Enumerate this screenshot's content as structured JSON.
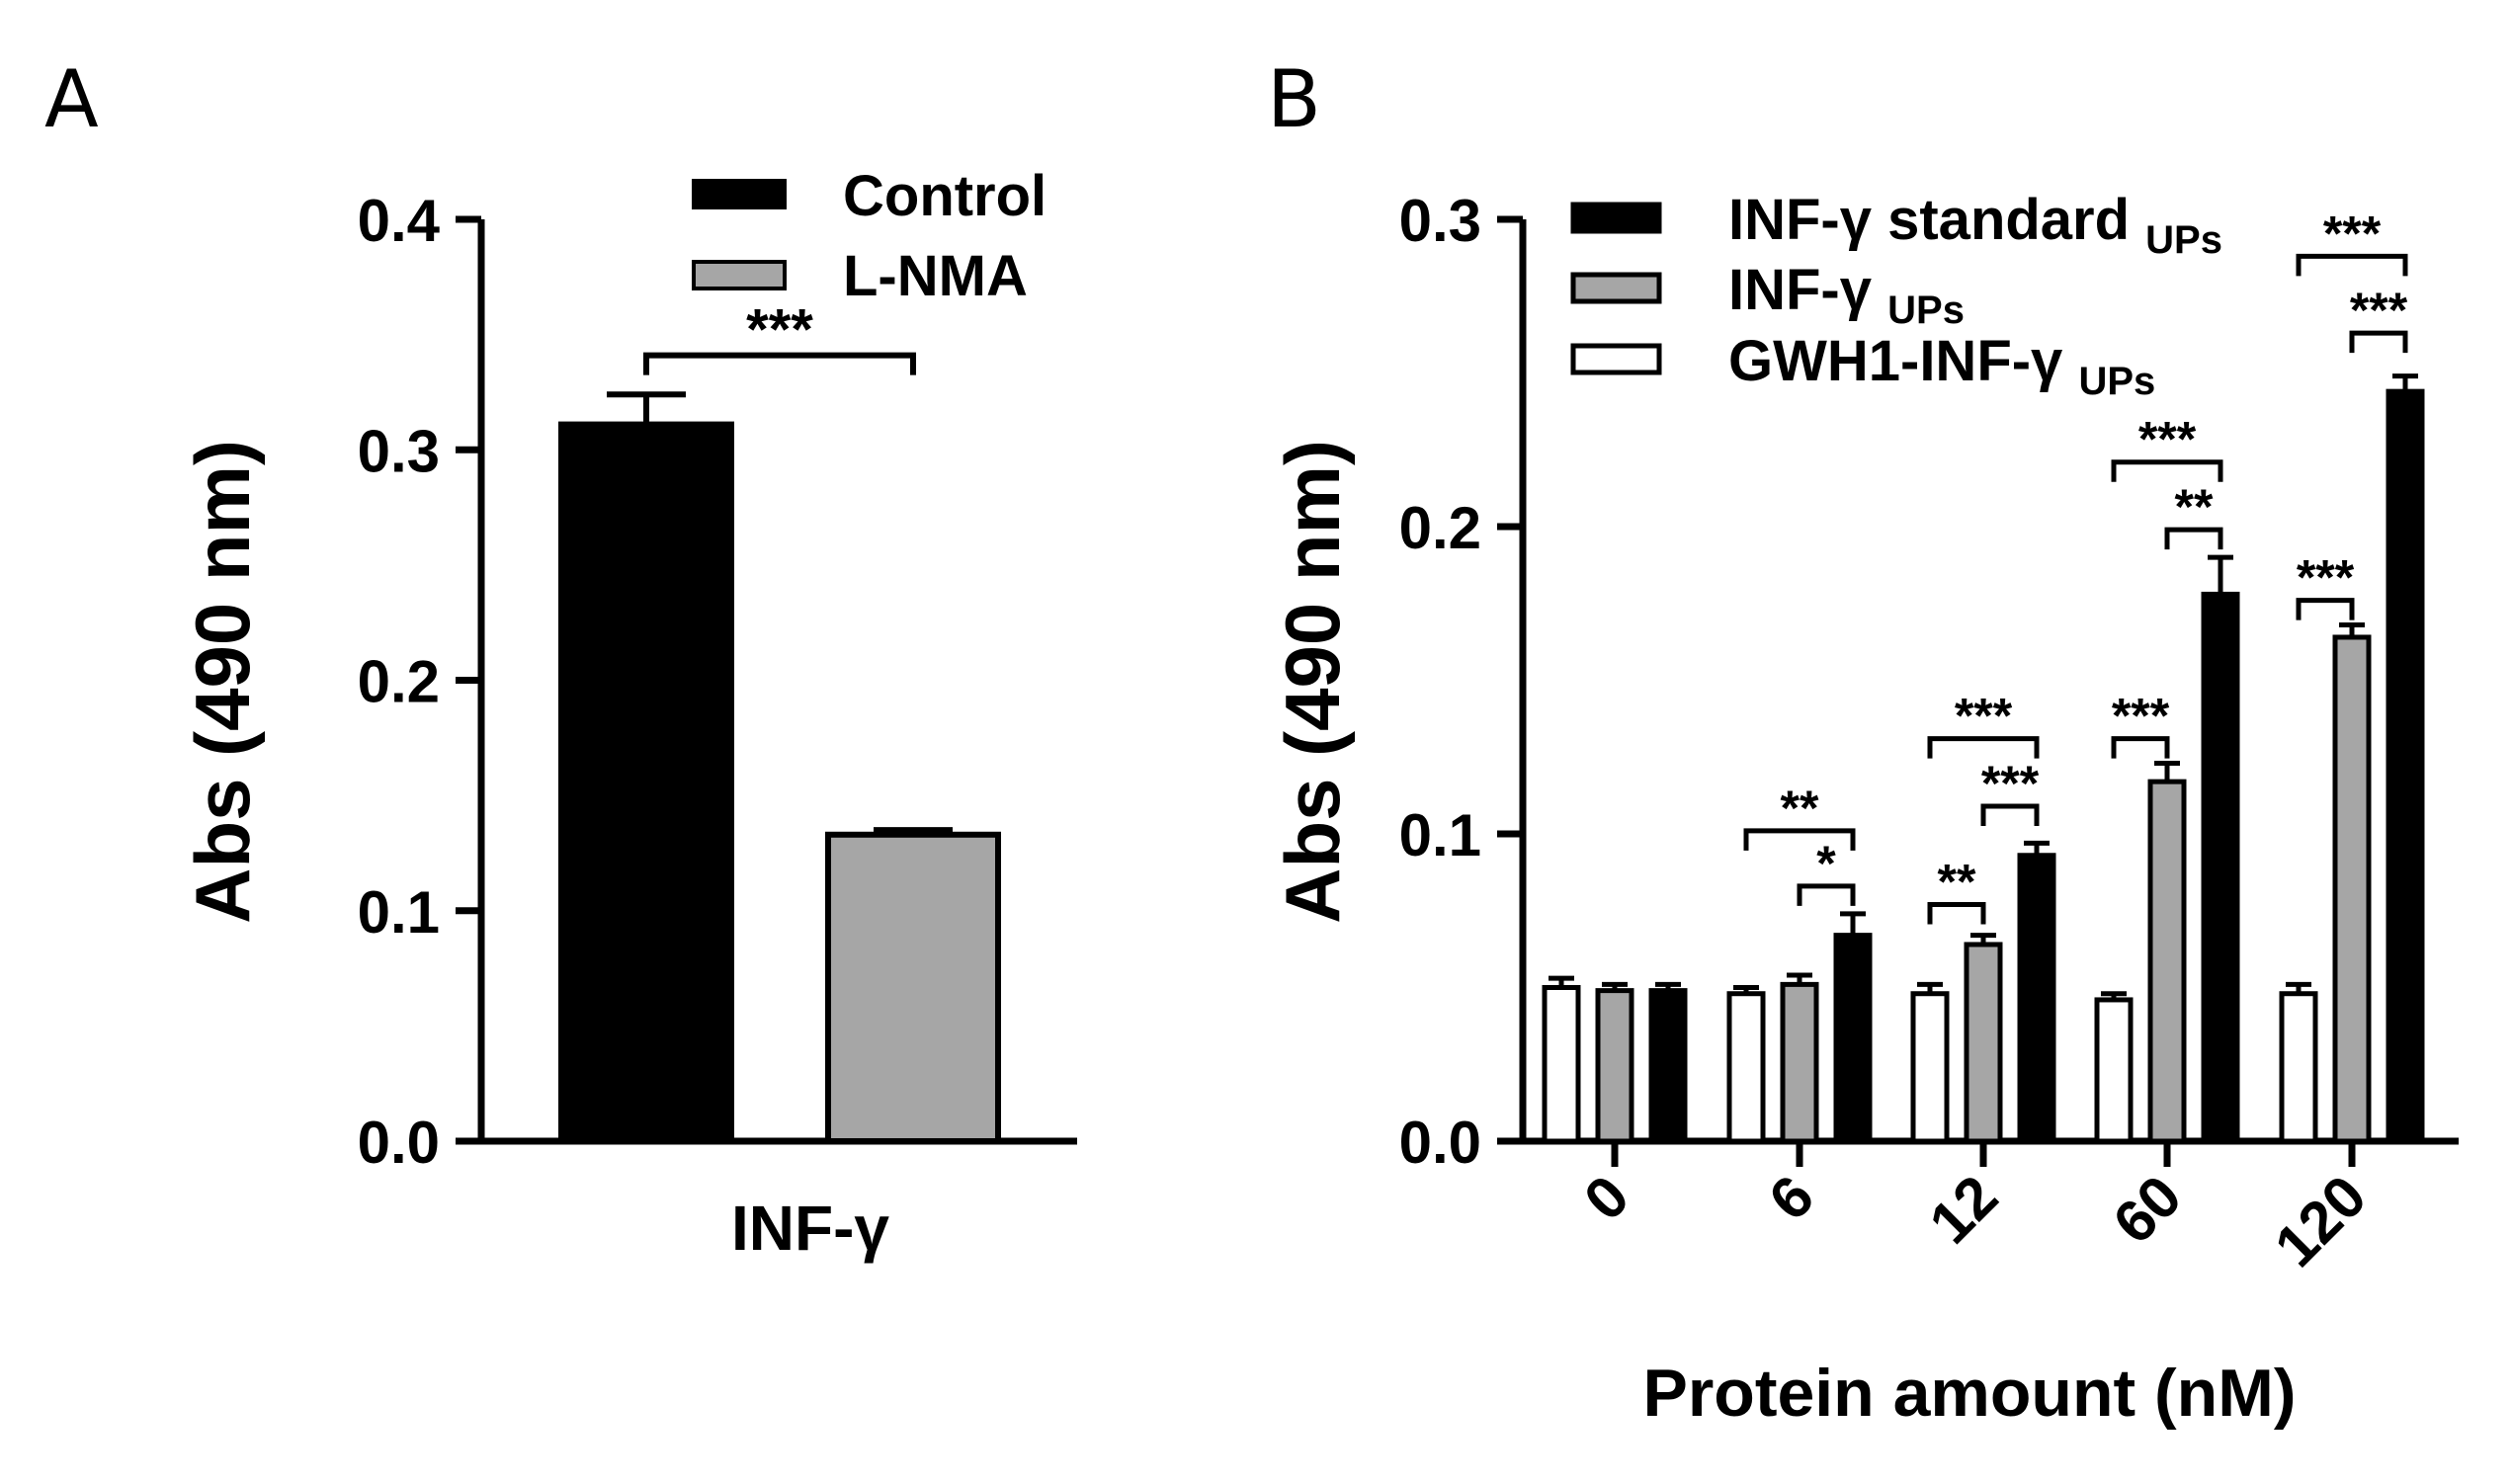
{
  "chart_data": [
    {
      "panel": "A",
      "type": "bar",
      "categories": [
        "INF-γ"
      ],
      "xlabel": "INF-γ",
      "ylabel": "Abs (490 nm)",
      "ylim": [
        0,
        0.4
      ],
      "yticks": [
        "0.0",
        "0.1",
        "0.2",
        "0.3",
        "0.4"
      ],
      "series": [
        {
          "name": "Control",
          "values": [
            0.311
          ],
          "errors": [
            0.013
          ],
          "fill": "#000000"
        },
        {
          "name": "L-NMA",
          "values": [
            0.133
          ],
          "errors": [
            0.002
          ],
          "fill": "#a6a6a6"
        }
      ],
      "significance": [
        {
          "label": "***",
          "between": [
            "Control",
            "L-NMA"
          ],
          "level": 0.341
        }
      ],
      "legend_position": "top-right",
      "grid": false
    },
    {
      "panel": "B",
      "type": "bar",
      "categories": [
        "0",
        "6",
        "12",
        "60",
        "120"
      ],
      "xlabel": "Protein amount (nM)",
      "ylabel": "Abs (490 nm)",
      "ylim": [
        0,
        0.3
      ],
      "yticks": [
        "0.0",
        "0.1",
        "0.2",
        "0.3"
      ],
      "series": [
        {
          "name": "GWH1-INF-γ",
          "subscript": "UPs",
          "fill": "#ffffff",
          "values": [
            0.05,
            0.048,
            0.048,
            0.046,
            0.048
          ],
          "errors": [
            0.003,
            0.002,
            0.003,
            0.002,
            0.003
          ]
        },
        {
          "name": "INF-γ",
          "subscript": "UPs",
          "fill": "#a6a6a6",
          "values": [
            0.049,
            0.051,
            0.064,
            0.117,
            0.164
          ],
          "errors": [
            0.002,
            0.003,
            0.003,
            0.006,
            0.004
          ]
        },
        {
          "name": "INF-γ standard",
          "subscript": "UPs",
          "fill": "#000000",
          "values": [
            0.049,
            0.067,
            0.093,
            0.178,
            0.244
          ],
          "errors": [
            0.002,
            0.007,
            0.004,
            0.012,
            0.005
          ]
        }
      ],
      "legend_order": [
        2,
        1,
        0
      ],
      "significance": [
        {
          "category": "6",
          "label": "**",
          "from": 0,
          "to": 2,
          "level": 0.101
        },
        {
          "category": "6",
          "label": "*",
          "from": 1,
          "to": 2,
          "level": 0.083
        },
        {
          "category": "12",
          "label": "**",
          "from": 0,
          "to": 1,
          "level": 0.077
        },
        {
          "category": "12",
          "label": "***",
          "from": 0,
          "to": 2,
          "level": 0.131
        },
        {
          "category": "12",
          "label": "***",
          "from": 1,
          "to": 2,
          "level": 0.109
        },
        {
          "category": "60",
          "label": "***",
          "from": 0,
          "to": 1,
          "level": 0.131
        },
        {
          "category": "60",
          "label": "***",
          "from": 0,
          "to": 2,
          "level": 0.221
        },
        {
          "category": "60",
          "label": "**",
          "from": 1,
          "to": 2,
          "level": 0.199
        },
        {
          "category": "120",
          "label": "***",
          "from": 0,
          "to": 1,
          "level": 0.176
        },
        {
          "category": "120",
          "label": "***",
          "from": 0,
          "to": 2,
          "level": 0.288
        },
        {
          "category": "120",
          "label": "***",
          "from": 1,
          "to": 2,
          "level": 0.263
        }
      ],
      "legend_position": "top-left",
      "grid": false
    }
  ]
}
